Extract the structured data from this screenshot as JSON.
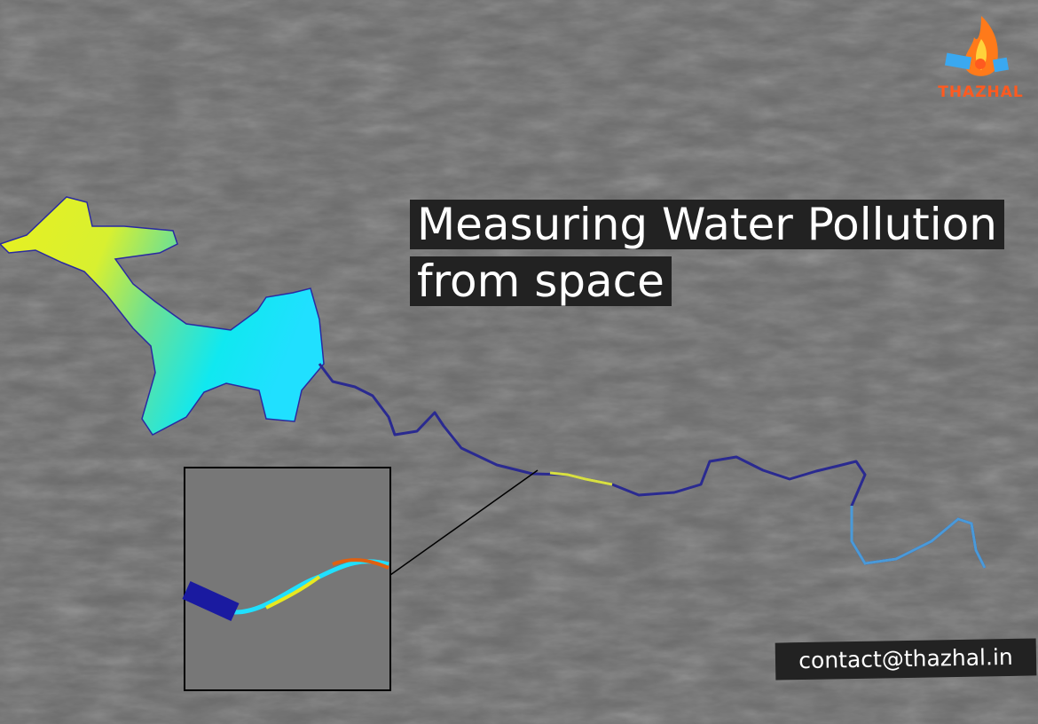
{
  "title": {
    "line1": "Measuring Water Pollution",
    "line2": "from space"
  },
  "contact": "contact@thazhal.in",
  "logo": {
    "text": "THAZHAL",
    "icon": "flame-satellite-logo"
  },
  "colors": {
    "background": "#6b6b6b",
    "label_bg": "#222222",
    "logo_orange": "#ff5a1f",
    "low_index": "#1a1a9a",
    "mid_index": "#00e5ff",
    "high_index": "#f5f020",
    "peak_index": "#e04010"
  }
}
